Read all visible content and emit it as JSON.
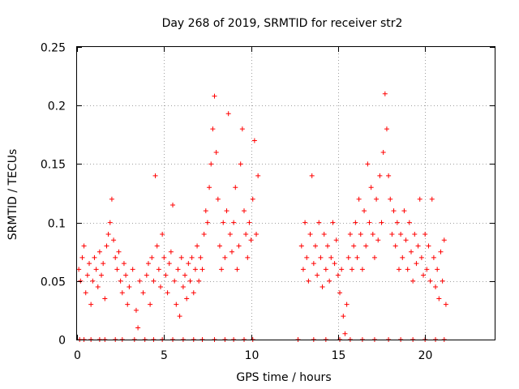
{
  "chart_data": {
    "type": "scatter",
    "title": "Day 268 of 2019, SRMTID for receiver str2",
    "xlabel": "GPS time / hours",
    "ylabel": "SRMTID / TECUs",
    "xlim": [
      0,
      24
    ],
    "ylim": [
      0,
      0.25
    ],
    "xticks": [
      0,
      5,
      10,
      15,
      20
    ],
    "yticks": [
      0,
      0.05,
      0.1,
      0.15,
      0.2,
      0.25
    ],
    "xtick_labels": [
      "0",
      "5",
      "10",
      "15",
      "20"
    ],
    "ytick_labels": [
      "0",
      "0.05",
      "0.1",
      "0.15",
      "0.2",
      "0.25"
    ],
    "grid": true,
    "marker": "+",
    "color": "#ff0000",
    "series": [
      {
        "name": "SRMTID",
        "points": [
          [
            0.1,
            0.06
          ],
          [
            0.2,
            0.05
          ],
          [
            0.3,
            0.07
          ],
          [
            0.4,
            0.08
          ],
          [
            0.5,
            0.04
          ],
          [
            0.6,
            0.055
          ],
          [
            0.7,
            0.065
          ],
          [
            0.8,
            0.03
          ],
          [
            0.9,
            0.05
          ],
          [
            1.0,
            0.07
          ],
          [
            1.1,
            0.06
          ],
          [
            1.2,
            0.045
          ],
          [
            1.3,
            0.075
          ],
          [
            1.4,
            0.055
          ],
          [
            1.5,
            0.065
          ],
          [
            1.6,
            0.035
          ],
          [
            1.7,
            0.08
          ],
          [
            1.8,
            0.09
          ],
          [
            1.9,
            0.1
          ],
          [
            2.0,
            0.12
          ],
          [
            2.1,
            0.085
          ],
          [
            2.2,
            0.07
          ],
          [
            2.3,
            0.06
          ],
          [
            2.4,
            0.075
          ],
          [
            2.5,
            0.05
          ],
          [
            2.6,
            0.04
          ],
          [
            2.7,
            0.065
          ],
          [
            2.8,
            0.055
          ],
          [
            2.9,
            0.03
          ],
          [
            3.0,
            0.045
          ],
          [
            3.2,
            0.06
          ],
          [
            3.4,
            0.025
          ],
          [
            3.5,
            0.01
          ],
          [
            3.6,
            0.05
          ],
          [
            3.8,
            0.04
          ],
          [
            4.0,
            0.055
          ],
          [
            4.1,
            0.065
          ],
          [
            4.2,
            0.03
          ],
          [
            4.3,
            0.07
          ],
          [
            4.4,
            0.05
          ],
          [
            4.5,
            0.14
          ],
          [
            4.6,
            0.08
          ],
          [
            4.7,
            0.06
          ],
          [
            4.8,
            0.045
          ],
          [
            4.9,
            0.09
          ],
          [
            5.0,
            0.07
          ],
          [
            5.1,
            0.055
          ],
          [
            5.2,
            0.04
          ],
          [
            5.3,
            0.065
          ],
          [
            5.4,
            0.075
          ],
          [
            5.5,
            0.115
          ],
          [
            5.6,
            0.05
          ],
          [
            5.7,
            0.03
          ],
          [
            5.8,
            0.06
          ],
          [
            5.9,
            0.02
          ],
          [
            6.0,
            0.07
          ],
          [
            6.1,
            0.045
          ],
          [
            6.2,
            0.055
          ],
          [
            6.3,
            0.035
          ],
          [
            6.4,
            0.065
          ],
          [
            6.5,
            0.05
          ],
          [
            6.6,
            0.07
          ],
          [
            6.7,
            0.04
          ],
          [
            6.8,
            0.06
          ],
          [
            6.9,
            0.08
          ],
          [
            7.0,
            0.05
          ],
          [
            7.1,
            0.07
          ],
          [
            7.2,
            0.06
          ],
          [
            7.3,
            0.09
          ],
          [
            7.4,
            0.11
          ],
          [
            7.5,
            0.1
          ],
          [
            7.6,
            0.13
          ],
          [
            7.7,
            0.15
          ],
          [
            7.8,
            0.18
          ],
          [
            7.9,
            0.208
          ],
          [
            8.0,
            0.16
          ],
          [
            8.1,
            0.12
          ],
          [
            8.2,
            0.08
          ],
          [
            8.3,
            0.06
          ],
          [
            8.4,
            0.1
          ],
          [
            8.5,
            0.07
          ],
          [
            8.6,
            0.11
          ],
          [
            8.7,
            0.193
          ],
          [
            8.8,
            0.09
          ],
          [
            8.9,
            0.075
          ],
          [
            9.0,
            0.1
          ],
          [
            9.1,
            0.13
          ],
          [
            9.2,
            0.06
          ],
          [
            9.3,
            0.08
          ],
          [
            9.4,
            0.15
          ],
          [
            9.5,
            0.18
          ],
          [
            9.6,
            0.11
          ],
          [
            9.7,
            0.09
          ],
          [
            9.8,
            0.07
          ],
          [
            9.9,
            0.1
          ],
          [
            10.0,
            0.085
          ],
          [
            10.1,
            0.12
          ],
          [
            10.2,
            0.17
          ],
          [
            10.3,
            0.09
          ],
          [
            10.4,
            0.14
          ],
          [
            12.9,
            0.08
          ],
          [
            13.0,
            0.06
          ],
          [
            13.1,
            0.1
          ],
          [
            13.2,
            0.07
          ],
          [
            13.3,
            0.05
          ],
          [
            13.4,
            0.09
          ],
          [
            13.5,
            0.14
          ],
          [
            13.6,
            0.065
          ],
          [
            13.7,
            0.08
          ],
          [
            13.8,
            0.055
          ],
          [
            13.9,
            0.1
          ],
          [
            14.0,
            0.07
          ],
          [
            14.1,
            0.045
          ],
          [
            14.2,
            0.09
          ],
          [
            14.3,
            0.06
          ],
          [
            14.4,
            0.08
          ],
          [
            14.5,
            0.05
          ],
          [
            14.6,
            0.07
          ],
          [
            14.7,
            0.1
          ],
          [
            14.8,
            0.065
          ],
          [
            14.9,
            0.085
          ],
          [
            15.0,
            0.055
          ],
          [
            15.1,
            0.04
          ],
          [
            15.2,
            0.06
          ],
          [
            15.3,
            0.02
          ],
          [
            15.4,
            0.005
          ],
          [
            15.5,
            0.03
          ],
          [
            15.6,
            0.07
          ],
          [
            15.7,
            0.09
          ],
          [
            15.8,
            0.06
          ],
          [
            15.9,
            0.08
          ],
          [
            16.0,
            0.1
          ],
          [
            16.1,
            0.07
          ],
          [
            16.2,
            0.12
          ],
          [
            16.3,
            0.09
          ],
          [
            16.4,
            0.06
          ],
          [
            16.5,
            0.11
          ],
          [
            16.6,
            0.08
          ],
          [
            16.7,
            0.15
          ],
          [
            16.8,
            0.1
          ],
          [
            16.9,
            0.13
          ],
          [
            17.0,
            0.09
          ],
          [
            17.1,
            0.07
          ],
          [
            17.2,
            0.12
          ],
          [
            17.3,
            0.085
          ],
          [
            17.4,
            0.14
          ],
          [
            17.5,
            0.1
          ],
          [
            17.6,
            0.16
          ],
          [
            17.7,
            0.21
          ],
          [
            17.8,
            0.18
          ],
          [
            17.9,
            0.14
          ],
          [
            18.0,
            0.12
          ],
          [
            18.1,
            0.09
          ],
          [
            18.2,
            0.11
          ],
          [
            18.3,
            0.08
          ],
          [
            18.4,
            0.1
          ],
          [
            18.5,
            0.06
          ],
          [
            18.6,
            0.09
          ],
          [
            18.7,
            0.07
          ],
          [
            18.8,
            0.11
          ],
          [
            18.9,
            0.085
          ],
          [
            19.0,
            0.06
          ],
          [
            19.1,
            0.1
          ],
          [
            19.2,
            0.075
          ],
          [
            19.3,
            0.05
          ],
          [
            19.4,
            0.09
          ],
          [
            19.5,
            0.065
          ],
          [
            19.6,
            0.08
          ],
          [
            19.7,
            0.12
          ],
          [
            19.8,
            0.07
          ],
          [
            19.9,
            0.055
          ],
          [
            20.0,
            0.09
          ],
          [
            20.1,
            0.06
          ],
          [
            20.2,
            0.08
          ],
          [
            20.3,
            0.05
          ],
          [
            20.4,
            0.12
          ],
          [
            20.5,
            0.07
          ],
          [
            20.6,
            0.045
          ],
          [
            20.7,
            0.06
          ],
          [
            20.8,
            0.035
          ],
          [
            20.9,
            0.075
          ],
          [
            21.0,
            0.05
          ],
          [
            21.1,
            0.085
          ],
          [
            21.2,
            0.03
          ],
          [
            0.15,
            0.0
          ],
          [
            0.4,
            0.0
          ],
          [
            0.8,
            0.0
          ],
          [
            1.3,
            0.0
          ],
          [
            1.6,
            0.0
          ],
          [
            2.2,
            0.0
          ],
          [
            2.6,
            0.0
          ],
          [
            3.3,
            0.0
          ],
          [
            3.9,
            0.0
          ],
          [
            4.4,
            0.0
          ],
          [
            4.9,
            0.0
          ],
          [
            5.5,
            0.0
          ],
          [
            6.1,
            0.0
          ],
          [
            6.7,
            0.0
          ],
          [
            7.2,
            0.0
          ],
          [
            7.9,
            0.0
          ],
          [
            8.5,
            0.0
          ],
          [
            9.0,
            0.0
          ],
          [
            9.6,
            0.0
          ],
          [
            10.1,
            0.0
          ],
          [
            12.7,
            0.0
          ],
          [
            13.6,
            0.0
          ],
          [
            14.3,
            0.0
          ],
          [
            15.1,
            0.0
          ],
          [
            15.7,
            0.0
          ],
          [
            16.4,
            0.0
          ],
          [
            17.1,
            0.0
          ],
          [
            17.9,
            0.0
          ],
          [
            18.6,
            0.0
          ],
          [
            19.3,
            0.0
          ],
          [
            20.0,
            0.0
          ],
          [
            20.6,
            0.0
          ],
          [
            21.1,
            0.0
          ]
        ]
      }
    ]
  }
}
